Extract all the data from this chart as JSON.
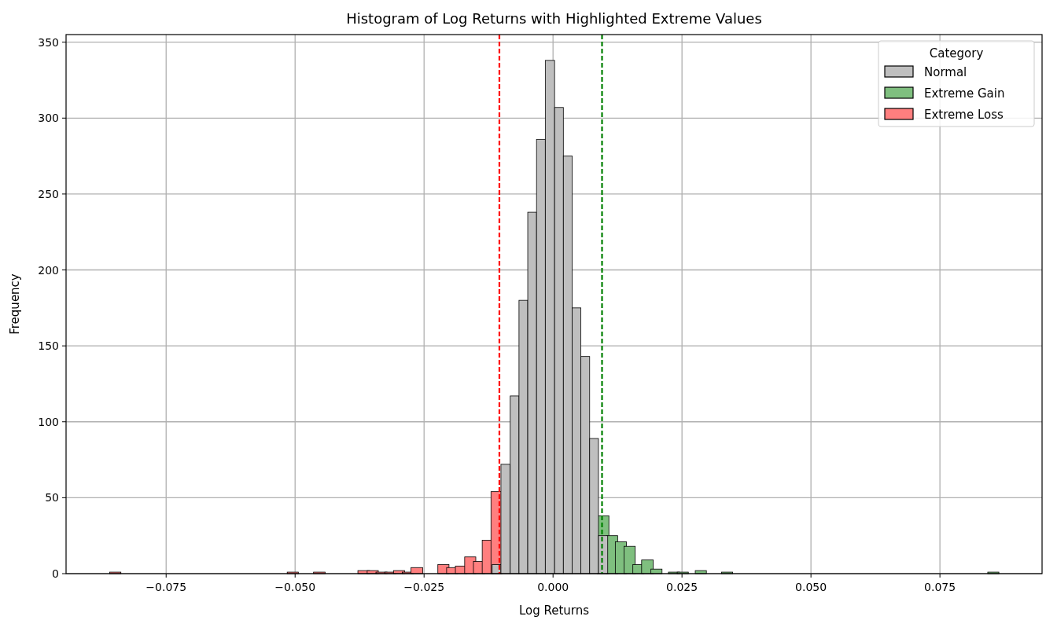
{
  "chart_data": {
    "type": "histogram",
    "title": "Histogram of Log Returns with Highlighted Extreme Values",
    "xlabel": "Log Returns",
    "ylabel": "Frequency",
    "legend_title": "Category",
    "legend": "top right",
    "grid": true,
    "bins": [
      -0.0857,
      -0.084,
      -0.0513,
      -0.0496,
      -0.0462,
      -0.0444,
      -0.0376,
      -0.0358,
      -0.0341,
      -0.0324,
      -0.0307,
      -0.029,
      -0.0273,
      -0.0255,
      -0.0221,
      -0.0204,
      -0.0187,
      -0.0169,
      -0.0152,
      -0.0135,
      -0.0118,
      -0.0101,
      -0.0083,
      -0.0066,
      -0.0049,
      -0.0032,
      -0.0015,
      0.0003,
      0.002,
      0.0037,
      0.0054,
      0.0071,
      0.0088,
      0.0106,
      0.0123,
      0.014,
      0.0157,
      0.0174,
      0.0192,
      0.0209,
      0.0226,
      0.0243,
      0.026,
      0.0278,
      0.0295,
      0.0329,
      0.0346,
      0.0845,
      0.0862
    ],
    "series": [
      {
        "name": "Normal",
        "color": "#bfbfbf",
        "values": [
          0,
          0,
          0,
          0,
          0,
          0,
          0,
          0,
          0,
          0,
          0,
          0,
          0,
          0,
          0,
          0,
          0,
          0,
          0,
          0,
          6,
          72,
          117,
          180,
          238,
          286,
          338,
          307,
          275,
          175,
          143,
          89,
          25,
          0,
          0,
          0,
          0,
          0,
          0,
          0,
          0,
          0,
          0,
          0,
          0,
          0,
          0,
          0
        ]
      },
      {
        "name": "Extreme Gain",
        "color": "#7fbf7f",
        "values": [
          0,
          0,
          0,
          0,
          0,
          0,
          0,
          0,
          0,
          0,
          0,
          0,
          0,
          0,
          0,
          0,
          0,
          0,
          0,
          0,
          0,
          0,
          0,
          0,
          0,
          0,
          0,
          0,
          0,
          0,
          0,
          0,
          38,
          25,
          21,
          18,
          6,
          9,
          3,
          0,
          1,
          1,
          0,
          2,
          0,
          1,
          0,
          1
        ]
      },
      {
        "name": "Extreme Loss",
        "color": "#ff7f7f",
        "values": [
          1,
          0,
          1,
          0,
          1,
          0,
          2,
          2,
          1,
          1,
          2,
          1,
          4,
          0,
          6,
          4,
          5,
          11,
          8,
          22,
          54,
          0,
          0,
          0,
          0,
          0,
          0,
          0,
          0,
          0,
          0,
          0,
          0,
          0,
          0,
          0,
          0,
          0,
          0,
          0,
          0,
          0,
          0,
          0,
          0,
          0,
          0,
          0
        ]
      }
    ],
    "ref_lines": [
      {
        "axis": "x",
        "value": -0.0104,
        "color": "#ff0000",
        "line_style": "dashed"
      },
      {
        "axis": "x",
        "value": 0.0095,
        "color": "#008000",
        "line_style": "dashed"
      }
    ],
    "xlim": [
      -0.0944,
      0.0948
    ],
    "xticks": [
      {
        "value": -0.075,
        "label": "−0.075"
      },
      {
        "value": -0.05,
        "label": "−0.050"
      },
      {
        "value": -0.025,
        "label": "−0.025"
      },
      {
        "value": 0,
        "label": "0.000"
      },
      {
        "value": 0.025,
        "label": "0.025"
      },
      {
        "value": 0.05,
        "label": "0.050"
      },
      {
        "value": 0.075,
        "label": "0.075"
      }
    ],
    "ylim": [
      0,
      355
    ],
    "yticks": [
      0,
      50,
      100,
      150,
      200,
      250,
      300,
      350
    ]
  }
}
